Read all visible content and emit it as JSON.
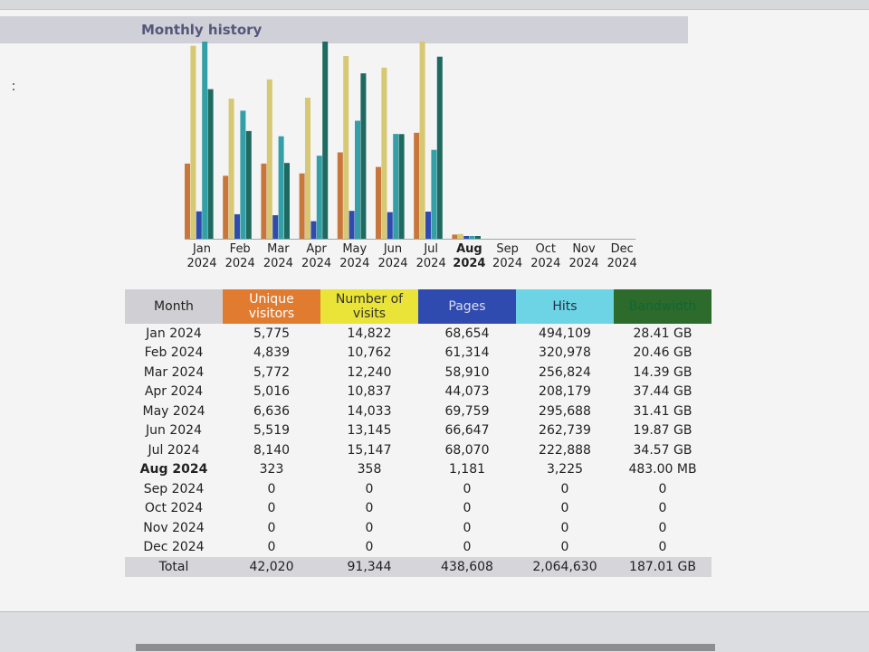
{
  "section_title": "Monthly history",
  "colors": {
    "unique_visitors": "#c9763a",
    "visits": "#d7c874",
    "pages": "#2f4bb0",
    "hits": "#33a0a8",
    "bandwidth": "#1f6a60"
  },
  "chart_data": {
    "type": "bar",
    "categories": [
      "Jan 2024",
      "Feb 2024",
      "Mar 2024",
      "Apr 2024",
      "May 2024",
      "Jun 2024",
      "Jul 2024",
      "Aug 2024",
      "Sep 2024",
      "Oct 2024",
      "Nov 2024",
      "Dec 2024"
    ],
    "month_short": [
      "Jan",
      "Feb",
      "Mar",
      "Apr",
      "May",
      "Jun",
      "Jul",
      "Aug",
      "Sep",
      "Oct",
      "Nov",
      "Dec"
    ],
    "year": "2024",
    "current_month_index": 7,
    "series": [
      {
        "key": "unique_visitors",
        "values": [
          5775,
          4839,
          5772,
          5016,
          6636,
          5519,
          8140,
          323,
          0,
          0,
          0,
          0
        ]
      },
      {
        "key": "visits",
        "values": [
          14822,
          10762,
          12240,
          10837,
          14033,
          13145,
          15147,
          358,
          0,
          0,
          0,
          0
        ]
      },
      {
        "key": "pages",
        "values": [
          68654,
          61314,
          58910,
          44073,
          69759,
          66647,
          68070,
          1181,
          0,
          0,
          0,
          0
        ]
      },
      {
        "key": "hits",
        "values": [
          494109,
          320978,
          256824,
          208179,
          295688,
          262739,
          222888,
          3225,
          0,
          0,
          0,
          0
        ]
      },
      {
        "key": "bandwidth_gb",
        "values": [
          28.41,
          20.46,
          14.39,
          37.44,
          31.41,
          19.87,
          34.57,
          0.483,
          0,
          0,
          0,
          0
        ]
      }
    ]
  },
  "table": {
    "headers": {
      "month": "Month",
      "unique_visitors": [
        "Unique",
        "visitors"
      ],
      "visits": [
        "Number of",
        "visits"
      ],
      "pages": "Pages",
      "hits": "Hits",
      "bandwidth": "Bandwidth"
    },
    "rows": [
      {
        "month": "Jan 2024",
        "unique": "5,775",
        "visits": "14,822",
        "pages": "68,654",
        "hits": "494,109",
        "bandwidth": "28.41 GB"
      },
      {
        "month": "Feb 2024",
        "unique": "4,839",
        "visits": "10,762",
        "pages": "61,314",
        "hits": "320,978",
        "bandwidth": "20.46 GB"
      },
      {
        "month": "Mar 2024",
        "unique": "5,772",
        "visits": "12,240",
        "pages": "58,910",
        "hits": "256,824",
        "bandwidth": "14.39 GB"
      },
      {
        "month": "Apr 2024",
        "unique": "5,016",
        "visits": "10,837",
        "pages": "44,073",
        "hits": "208,179",
        "bandwidth": "37.44 GB"
      },
      {
        "month": "May 2024",
        "unique": "6,636",
        "visits": "14,033",
        "pages": "69,759",
        "hits": "295,688",
        "bandwidth": "31.41 GB"
      },
      {
        "month": "Jun 2024",
        "unique": "5,519",
        "visits": "13,145",
        "pages": "66,647",
        "hits": "262,739",
        "bandwidth": "19.87 GB"
      },
      {
        "month": "Jul 2024",
        "unique": "8,140",
        "visits": "15,147",
        "pages": "68,070",
        "hits": "222,888",
        "bandwidth": "34.57 GB"
      },
      {
        "month": "Aug 2024",
        "unique": "323",
        "visits": "358",
        "pages": "1,181",
        "hits": "3,225",
        "bandwidth": "483.00 MB"
      },
      {
        "month": "Sep 2024",
        "unique": "0",
        "visits": "0",
        "pages": "0",
        "hits": "0",
        "bandwidth": "0"
      },
      {
        "month": "Oct 2024",
        "unique": "0",
        "visits": "0",
        "pages": "0",
        "hits": "0",
        "bandwidth": "0"
      },
      {
        "month": "Nov 2024",
        "unique": "0",
        "visits": "0",
        "pages": "0",
        "hits": "0",
        "bandwidth": "0"
      },
      {
        "month": "Dec 2024",
        "unique": "0",
        "visits": "0",
        "pages": "0",
        "hits": "0",
        "bandwidth": "0"
      }
    ],
    "total": {
      "month": "Total",
      "unique": "42,020",
      "visits": "91,344",
      "pages": "438,608",
      "hits": "2,064,630",
      "bandwidth": "187.01 GB"
    }
  }
}
